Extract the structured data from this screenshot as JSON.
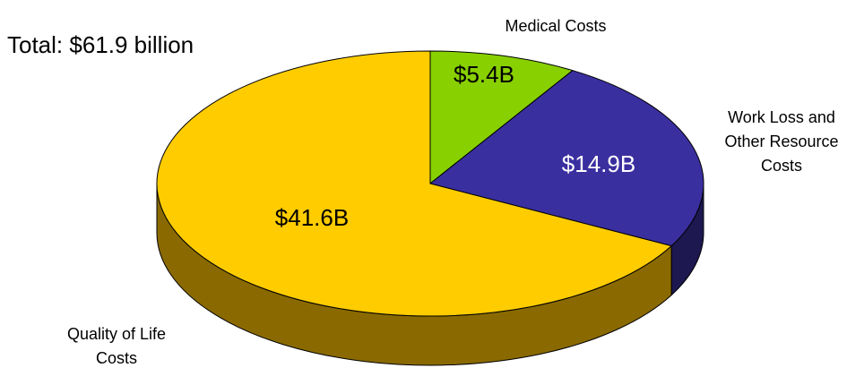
{
  "chart_data": {
    "type": "pie",
    "title": "Total: $61.9 billion",
    "categories": [
      "Medical Costs",
      "Work Loss and\nOther Resource\nCosts",
      "Quality of Life\nCosts"
    ],
    "values": [
      5.4,
      14.9,
      41.6
    ],
    "value_labels": [
      "$5.4B",
      "$14.9B",
      "$41.6B"
    ],
    "colors": [
      "#88d000",
      "#3a2f9f",
      "#ffcc00"
    ],
    "side_colors": [
      "#4f7a00",
      "#1d1850",
      "#8a6a00"
    ],
    "label_colors": [
      "#000000",
      "#ffffff",
      "#000000"
    ],
    "three_d": true
  }
}
